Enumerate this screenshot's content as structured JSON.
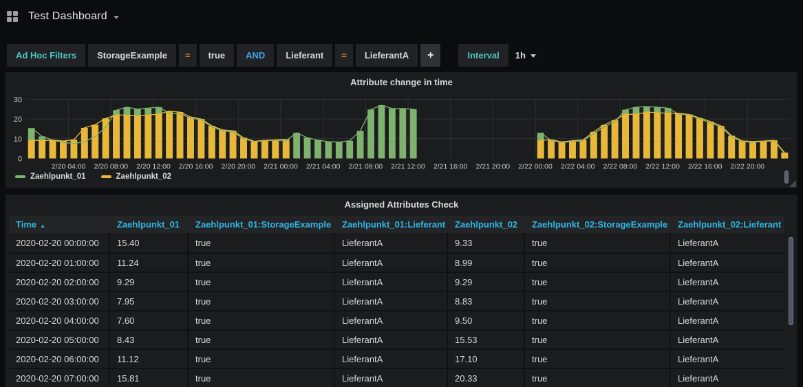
{
  "topbar": {
    "title": "Test Dashboard"
  },
  "filters": {
    "label": "Ad Hoc Filters",
    "items": [
      {
        "type": "key",
        "text": "StorageExample"
      },
      {
        "type": "op",
        "text": "="
      },
      {
        "type": "value",
        "text": "true"
      },
      {
        "type": "cond",
        "text": "AND"
      },
      {
        "type": "key",
        "text": "Lieferant"
      },
      {
        "type": "op",
        "text": "="
      },
      {
        "type": "value",
        "text": "LieferantA"
      },
      {
        "type": "add",
        "text": "+"
      }
    ],
    "interval_label": "Interval",
    "interval_value": "1h"
  },
  "chart_panel": {
    "title": "Attribute change in time"
  },
  "chart_data": {
    "type": "bar",
    "x_start": "2/20 00:00",
    "interval_hours": 1,
    "hours_total": 72,
    "x_tick_hours": [
      4,
      8,
      12,
      16,
      20,
      24,
      28,
      32,
      36,
      40,
      44,
      48,
      52,
      56,
      60,
      64,
      68
    ],
    "x_tick_labels": [
      "2/20 04:00",
      "2/20 08:00",
      "2/20 12:00",
      "2/20 16:00",
      "2/20 20:00",
      "2/21 00:00",
      "2/21 04:00",
      "2/21 08:00",
      "2/21 12:00",
      "2/21 16:00",
      "2/21 20:00",
      "2/22 00:00",
      "2/22 04:00",
      "2/22 08:00",
      "2/22 12:00",
      "2/22 16:00",
      "2/22 20:00"
    ],
    "yticks": [
      0,
      10,
      20,
      30
    ],
    "ylim": [
      0,
      32.5
    ],
    "grid": true,
    "legend_position": "bottom-left",
    "series": [
      {
        "name": "Zaehlpunkt_01",
        "color": "#7EB26D",
        "values": [
          15.4,
          11.2,
          9.3,
          8.0,
          7.6,
          8.4,
          11.1,
          15.8,
          24.5,
          26.0,
          25.0,
          25.5,
          26.0,
          23.0,
          22.5,
          20.5,
          19.5,
          16.0,
          14.0,
          13.5,
          10.0,
          8.5,
          9.0,
          9.2,
          9.0,
          13.0,
          10.5,
          9.3,
          8.5,
          8.3,
          9.0,
          14.0,
          24.8,
          27.0,
          25.3,
          25.3,
          25.0,
          null,
          null,
          null,
          null,
          null,
          null,
          null,
          null,
          null,
          null,
          null,
          13.0,
          9.0,
          8.2,
          8.5,
          9.0,
          12.5,
          16.0,
          18.5,
          24.7,
          26.0,
          26.3,
          26.0,
          25.5,
          22.5,
          22.0,
          20.0,
          18.0,
          16.0,
          11.0,
          8.5,
          8.3,
          8.5,
          9.0,
          2.5
        ]
      },
      {
        "name": "Zaehlpunkt_02",
        "color": "#EAB839",
        "values": [
          9.33,
          8.99,
          9.29,
          8.83,
          9.5,
          15.53,
          17.1,
          20.33,
          22.0,
          22.0,
          21.5,
          22.0,
          22.5,
          24.0,
          23.5,
          21.0,
          20.0,
          16.5,
          14.5,
          14.0,
          10.5,
          8.7,
          9.2,
          9.4,
          9.7,
          null,
          null,
          null,
          null,
          null,
          null,
          null,
          null,
          null,
          null,
          null,
          null,
          null,
          null,
          null,
          null,
          null,
          null,
          null,
          null,
          null,
          null,
          null,
          9.2,
          9.5,
          8.4,
          9.0,
          9.4,
          13.5,
          17.0,
          19.4,
          22.4,
          22.4,
          23.5,
          23.2,
          22.9,
          22.9,
          22.3,
          20.5,
          18.7,
          16.5,
          11.5,
          8.9,
          8.6,
          8.8,
          9.2,
          3.0
        ]
      }
    ]
  },
  "table_panel": {
    "title": "Assigned Attributes Check",
    "sort": {
      "column": "Time",
      "direction": "asc"
    },
    "columns": [
      "Time",
      "Zaehlpunkt_01",
      "Zaehlpunkt_01:StorageExample",
      "Zaehlpunkt_01:Lieferant",
      "Zaehlpunkt_02",
      "Zaehlpunkt_02:StorageExample",
      "Zaehlpunkt_02:Lieferant"
    ],
    "rows": [
      [
        "2020-02-20 00:00:00",
        "15.40",
        "true",
        "LieferantA",
        "9.33",
        "true",
        "LieferantA"
      ],
      [
        "2020-02-20 01:00:00",
        "11.24",
        "true",
        "LieferantA",
        "8.99",
        "true",
        "LieferantA"
      ],
      [
        "2020-02-20 02:00:00",
        "9.29",
        "true",
        "LieferantA",
        "9.29",
        "true",
        "LieferantA"
      ],
      [
        "2020-02-20 03:00:00",
        "7.95",
        "true",
        "LieferantA",
        "8.83",
        "true",
        "LieferantA"
      ],
      [
        "2020-02-20 04:00:00",
        "7.60",
        "true",
        "LieferantA",
        "9.50",
        "true",
        "LieferantA"
      ],
      [
        "2020-02-20 05:00:00",
        "8.43",
        "true",
        "LieferantA",
        "15.53",
        "true",
        "LieferantA"
      ],
      [
        "2020-02-20 06:00:00",
        "11.12",
        "true",
        "LieferantA",
        "17.10",
        "true",
        "LieferantA"
      ],
      [
        "2020-02-20 07:00:00",
        "15.81",
        "true",
        "LieferantA",
        "20.33",
        "true",
        "LieferantA"
      ]
    ]
  }
}
